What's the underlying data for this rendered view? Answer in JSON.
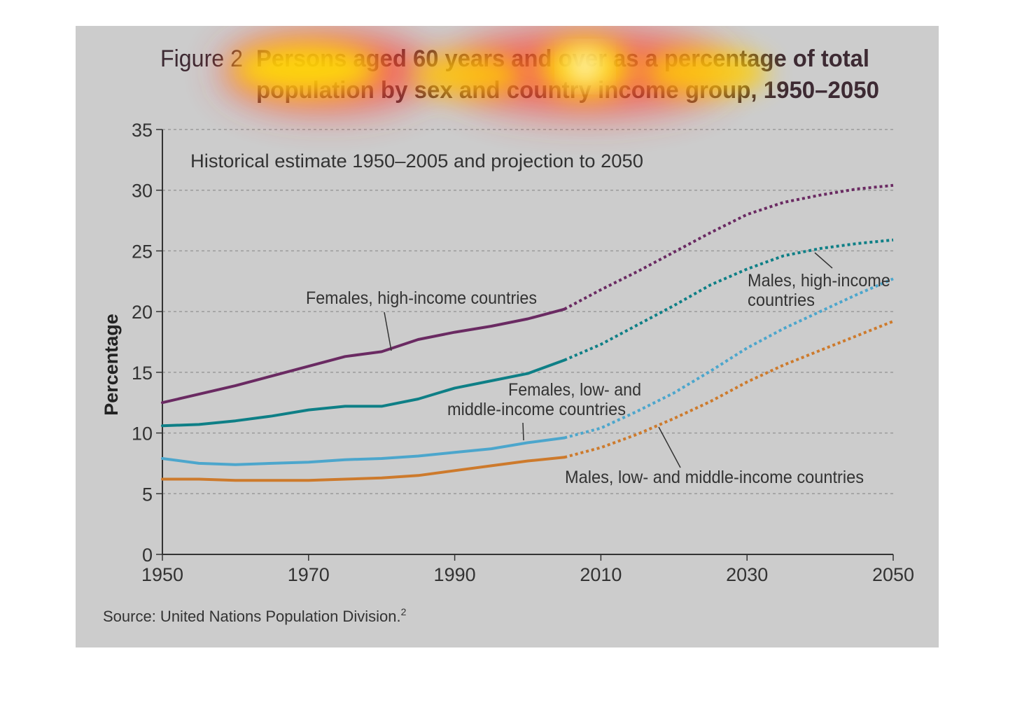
{
  "figure": {
    "label": "Figure 2",
    "title_line1": "Persons aged 60 years and over as a percentage of total",
    "title_line2": "population by sex and country income group, 1950–2050",
    "subtitle": "Historical estimate 1950–2005 and projection to 2050",
    "source": "Source: United Nations Population Division.",
    "source_superscript": "2"
  },
  "colors": {
    "panel_bg": "#cccccc",
    "title": "#3d2a33",
    "text": "#333333",
    "grid": "#9a9a9a",
    "females_high": "#6a2a62",
    "males_high": "#0e7f86",
    "females_low": "#4ca6cc",
    "males_low": "#cd7a2c"
  },
  "chart_data": {
    "type": "line",
    "title": "Persons aged 60 years and over as a percentage of total population by sex and country income group, 1950–2050",
    "ylabel": "Percentage",
    "xlim": [
      1950,
      2050
    ],
    "ylim": [
      0,
      35
    ],
    "xticks": [
      "1950",
      "1970",
      "1990",
      "2010",
      "2030",
      "2050"
    ],
    "yticks": [
      "0",
      "5",
      "10",
      "15",
      "20",
      "25",
      "30",
      "35"
    ],
    "grid": true,
    "historical_end": 2005,
    "series": [
      {
        "name": "Females, high-income countries",
        "color": "#6a2a62",
        "x": [
          1950,
          1955,
          1960,
          1965,
          1970,
          1975,
          1980,
          1985,
          1990,
          1995,
          2000,
          2005,
          2010,
          2015,
          2020,
          2025,
          2030,
          2035,
          2040,
          2045,
          2050
        ],
        "y": [
          12.5,
          13.2,
          13.9,
          14.7,
          15.5,
          16.3,
          16.7,
          17.7,
          18.3,
          18.8,
          19.4,
          20.2,
          21.8,
          23.3,
          24.9,
          26.5,
          28.0,
          29.0,
          29.6,
          30.1,
          30.4
        ]
      },
      {
        "name": "Males, high-income countries",
        "color": "#0e7f86",
        "x": [
          1950,
          1955,
          1960,
          1965,
          1970,
          1975,
          1980,
          1985,
          1990,
          1995,
          2000,
          2005,
          2010,
          2015,
          2020,
          2025,
          2030,
          2035,
          2040,
          2045,
          2050
        ],
        "y": [
          10.6,
          10.7,
          11.0,
          11.4,
          11.9,
          12.2,
          12.2,
          12.8,
          13.7,
          14.3,
          14.9,
          16.0,
          17.3,
          18.9,
          20.5,
          22.2,
          23.5,
          24.6,
          25.2,
          25.6,
          25.9
        ]
      },
      {
        "name": "Females, low- and middle-income countries",
        "color": "#4ca6cc",
        "x": [
          1950,
          1955,
          1960,
          1965,
          1970,
          1975,
          1980,
          1985,
          1990,
          1995,
          2000,
          2005,
          2010,
          2015,
          2020,
          2025,
          2030,
          2035,
          2040,
          2045,
          2050
        ],
        "y": [
          7.9,
          7.5,
          7.4,
          7.5,
          7.6,
          7.8,
          7.9,
          8.1,
          8.4,
          8.7,
          9.2,
          9.6,
          10.4,
          11.8,
          13.3,
          15.1,
          17.0,
          18.6,
          20.0,
          21.4,
          22.7
        ]
      },
      {
        "name": "Males, low- and middle-income countries",
        "color": "#cd7a2c",
        "x": [
          1950,
          1955,
          1960,
          1965,
          1970,
          1975,
          1980,
          1985,
          1990,
          1995,
          2000,
          2005,
          2010,
          2015,
          2020,
          2025,
          2030,
          2035,
          2040,
          2045,
          2050
        ],
        "y": [
          6.2,
          6.2,
          6.1,
          6.1,
          6.1,
          6.2,
          6.3,
          6.5,
          6.9,
          7.3,
          7.7,
          8.0,
          8.8,
          9.9,
          11.2,
          12.6,
          14.2,
          15.6,
          16.8,
          18.0,
          19.2
        ]
      }
    ],
    "annotations": [
      {
        "series": 0,
        "line1": "Females, high-income countries",
        "line2": ""
      },
      {
        "series": 1,
        "line1": "Males, high-income",
        "line2": "countries"
      },
      {
        "series": 2,
        "line1": "Females, low- and",
        "line2": "middle-income countries"
      },
      {
        "series": 3,
        "line1": "Males, low- and middle-income countries",
        "line2": ""
      }
    ]
  }
}
